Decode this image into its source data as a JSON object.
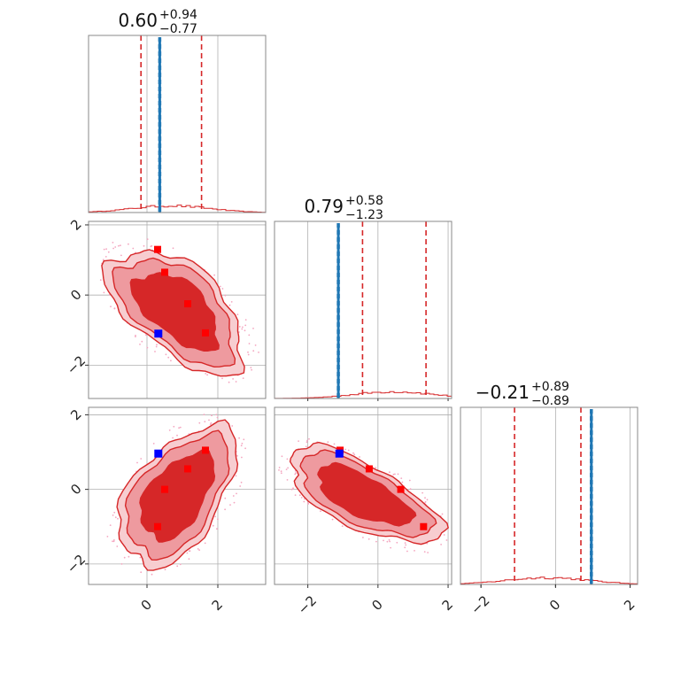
{
  "chart_data": {
    "type": "corner",
    "colors": {
      "posterior": "#d62728",
      "injection": "#1f77b4",
      "mode_marker": "#ff0000",
      "truth_marker": "#0000ff",
      "grid": "#b0b0b0"
    },
    "parameters": [
      {
        "range": [
          -1.65,
          3.35
        ],
        "ticks": [
          0,
          2
        ],
        "tick_labels": [
          "0",
          "2"
        ],
        "title": {
          "median": "0.60",
          "plus": "+0.94",
          "minus": "−0.77"
        },
        "quantiles": [
          -0.17,
          1.54
        ],
        "injected": 0.36
      },
      {
        "range": [
          -2.95,
          2.1
        ],
        "ticks": [
          -2,
          0,
          2
        ],
        "tick_labels": [
          "−2",
          "0",
          "2"
        ],
        "title": {
          "median": "0.79",
          "plus": "+0.58",
          "minus": "−1.23"
        },
        "quantiles": [
          -0.44,
          1.37
        ],
        "injected": -1.13
      },
      {
        "range": [
          -2.55,
          2.2
        ],
        "ticks": [
          -2,
          0,
          2
        ],
        "tick_labels": [
          "−2",
          "0",
          "2"
        ],
        "title": {
          "median": "−0.21",
          "plus": "+0.89",
          "minus": "−0.89"
        },
        "quantiles": [
          -1.1,
          0.68
        ],
        "injected": 0.96
      }
    ],
    "modes": [
      [
        0.3,
        1.3,
        -1.0
      ],
      [
        0.5,
        0.65,
        0.0
      ],
      [
        1.15,
        -0.25,
        0.55
      ],
      [
        1.65,
        -1.08,
        1.05
      ]
    ],
    "truth": [
      0.32,
      -1.1,
      0.96
    ]
  }
}
